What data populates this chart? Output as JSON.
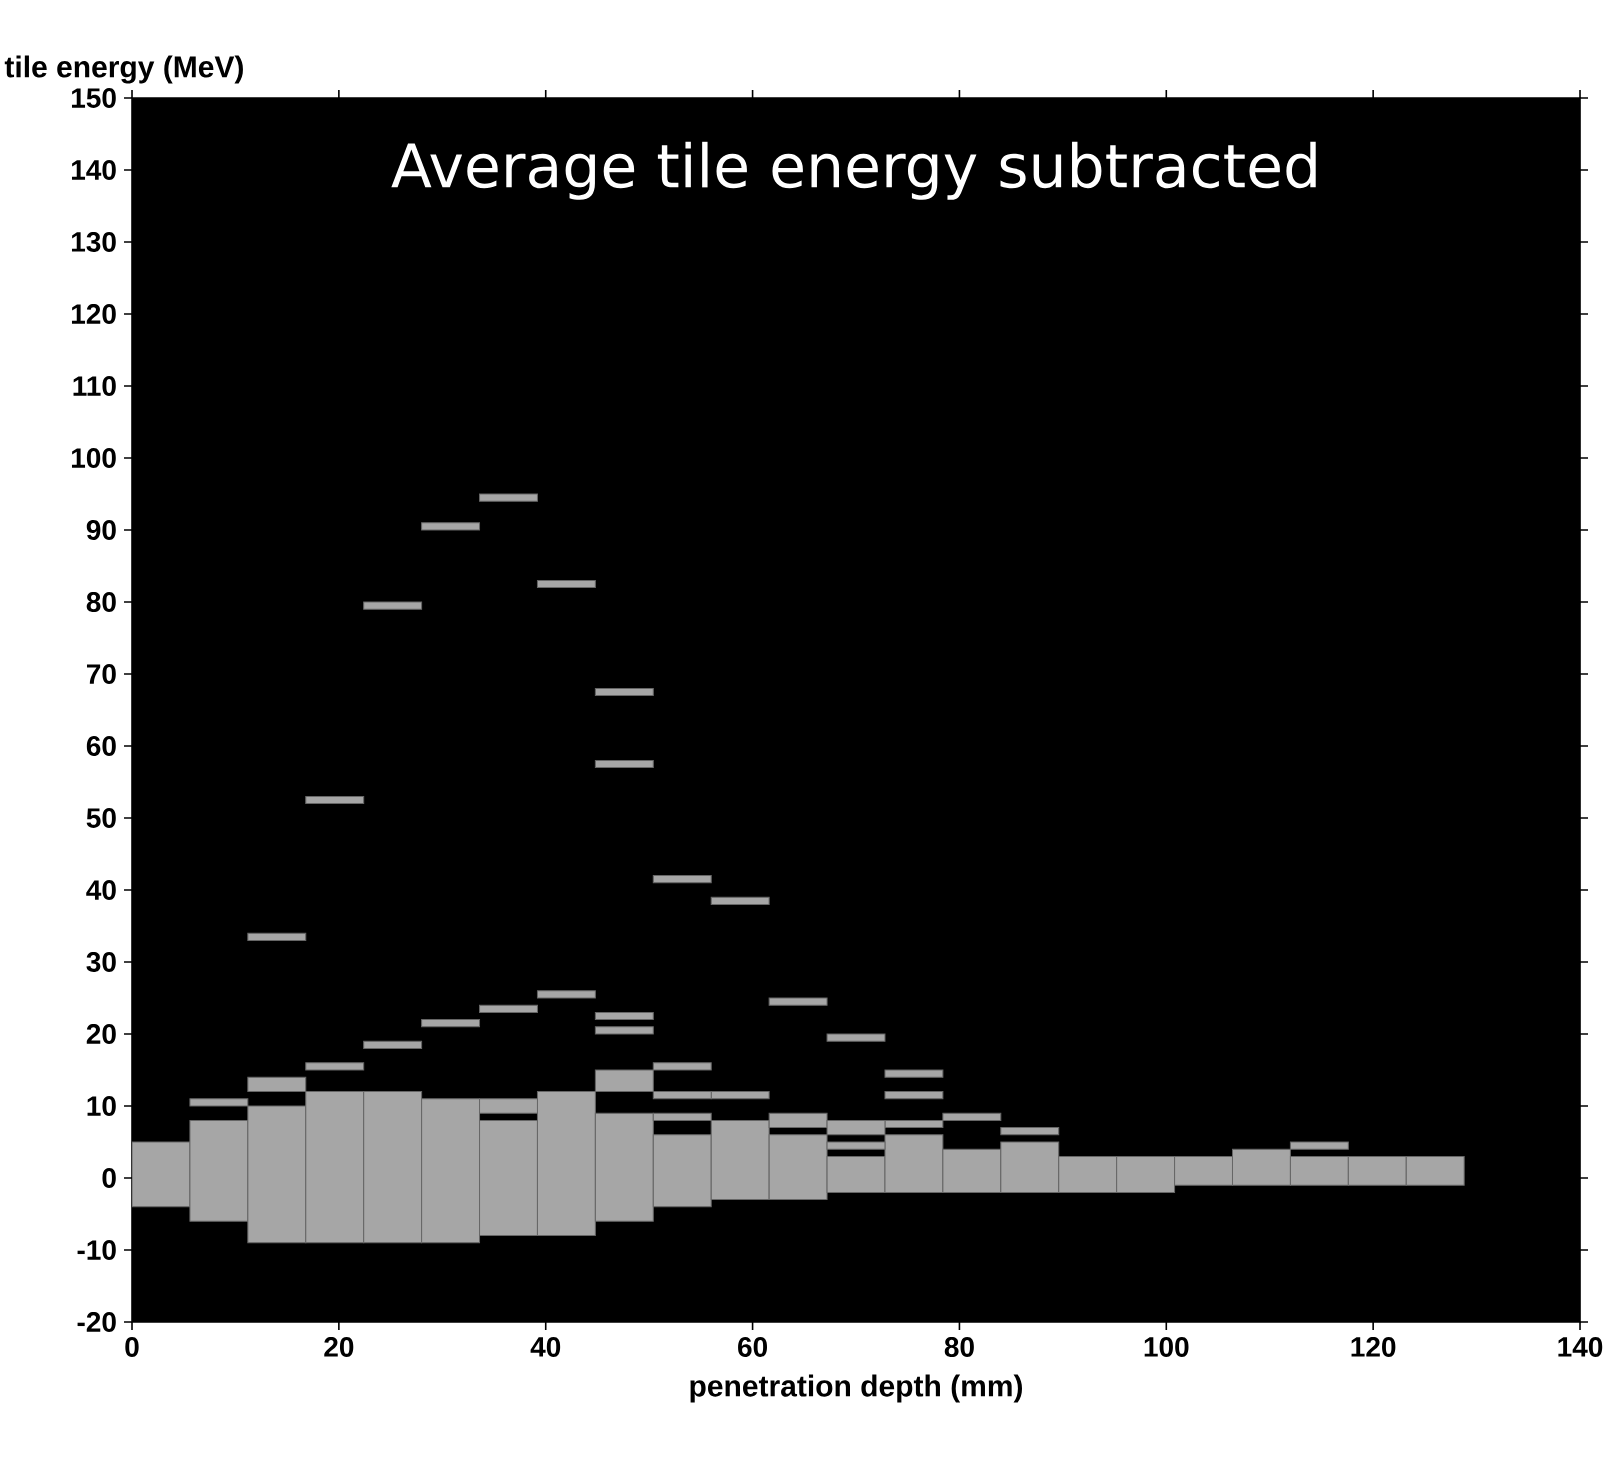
{
  "chart_data": {
    "type": "bar",
    "title": "Average tile energy subtracted",
    "xlabel": "penetration depth (mm)",
    "ylabel": "tile energy (MeV)",
    "series": [
      {
        "color": "#a6a6a6",
        "x": [
          2.8,
          8.4,
          14.0,
          19.6,
          25.2,
          30.8,
          36.4,
          42.0,
          47.6,
          53.2,
          58.8,
          64.4,
          70.0,
          75.6,
          81.2,
          86.8,
          92.4,
          98.0,
          103.6,
          109.2,
          114.8,
          120.4,
          126.0
        ],
        "base": [
          -4,
          -6,
          -9,
          -9,
          -9,
          -9,
          -8,
          -8,
          -6,
          -4,
          -3,
          -3,
          -2,
          -2,
          -2,
          -2,
          -2,
          -2,
          -1,
          -1,
          -1,
          -1,
          -1
        ],
        "values": [
          9,
          14,
          19,
          21,
          21,
          20,
          16,
          20,
          15,
          10,
          11,
          9,
          5,
          8,
          6,
          7,
          5,
          5,
          4,
          5,
          4,
          4,
          4
        ]
      },
      {
        "color": "#a6a6a6",
        "x": [
          8.4,
          14.0,
          19.6,
          25.2,
          30.8,
          36.4,
          42.0,
          47.6,
          53.2,
          58.8,
          64.4,
          70.0,
          75.6,
          81.2,
          86.8,
          114.8
        ],
        "base": [
          10,
          12,
          15,
          18,
          21,
          9,
          25,
          12,
          8,
          11,
          7,
          4,
          7,
          8,
          6,
          4
        ],
        "values": [
          1,
          2,
          1,
          1,
          1,
          2,
          1,
          3,
          1,
          1,
          2,
          1,
          1,
          1,
          1,
          1
        ]
      },
      {
        "color": "#a6a6a6",
        "x": [
          14.0,
          19.6,
          25.2,
          30.8,
          36.4,
          42.0,
          47.6,
          53.2,
          58.8,
          64.4,
          70.0,
          75.6
        ],
        "base": [
          33,
          52,
          79,
          90,
          23,
          82,
          20,
          11,
          38,
          24,
          6,
          11
        ],
        "values": [
          1,
          1,
          1,
          1,
          1,
          1,
          1,
          1,
          1,
          1,
          2,
          1
        ]
      },
      {
        "color": "#a6a6a6",
        "x": [
          36.4,
          47.6,
          53.2,
          70.0,
          75.6
        ],
        "base": [
          94,
          22,
          15,
          19,
          14
        ],
        "values": [
          1,
          1,
          1,
          1,
          1
        ]
      },
      {
        "color": "#a6a6a6",
        "x": [
          47.6,
          53.2
        ],
        "base": [
          57,
          41
        ],
        "values": [
          1,
          1
        ]
      },
      {
        "color": "#a6a6a6",
        "x": [
          47.6
        ],
        "base": [
          67
        ],
        "values": [
          1
        ]
      }
    ],
    "xlim": [
      0,
      140
    ],
    "xticks": [
      0,
      20,
      40,
      60,
      80,
      100,
      120,
      140
    ],
    "ylim": [
      -20,
      150
    ],
    "yticks": [
      -20,
      -10,
      0,
      10,
      20,
      30,
      40,
      50,
      60,
      70,
      80,
      90,
      100,
      110,
      120,
      130,
      140,
      150
    ]
  }
}
